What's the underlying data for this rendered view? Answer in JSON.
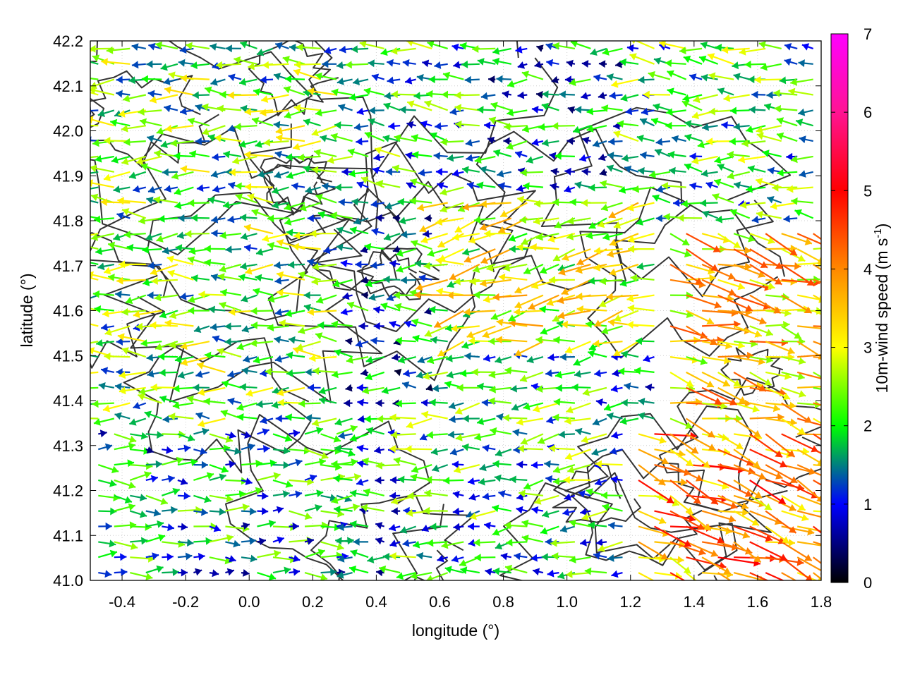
{
  "chart_data": {
    "type": "vector-field",
    "xlabel": "longitude (°)",
    "ylabel": "latitude (°)",
    "xlim": [
      -0.5,
      1.8
    ],
    "ylim": [
      41.0,
      42.2
    ],
    "x_ticks": [
      "-0.4",
      "-0.2",
      "0.0",
      "0.2",
      "0.4",
      "0.6",
      "0.8",
      "1.0",
      "1.2",
      "1.4",
      "1.6",
      "1.8"
    ],
    "x_tick_values": [
      -0.4,
      -0.2,
      0.0,
      0.2,
      0.4,
      0.6,
      0.8,
      1.0,
      1.2,
      1.4,
      1.6,
      1.8
    ],
    "y_ticks": [
      "41.0",
      "41.1",
      "41.2",
      "41.3",
      "41.4",
      "41.5",
      "41.6",
      "41.7",
      "41.8",
      "41.9",
      "42.0",
      "42.1",
      "42.2"
    ],
    "y_tick_values": [
      41.0,
      41.1,
      41.2,
      41.3,
      41.4,
      41.5,
      41.6,
      41.7,
      41.8,
      41.9,
      42.0,
      42.1,
      42.2
    ],
    "colorbar": {
      "label_main": "10m-wind speed (m s",
      "label_sup": "-1",
      "label_close": ")",
      "range": [
        0,
        7
      ],
      "ticks": [
        "0",
        "1",
        "2",
        "3",
        "4",
        "5",
        "6",
        "7"
      ],
      "tick_values": [
        0,
        1,
        2,
        3,
        4,
        5,
        6,
        7
      ],
      "colors": [
        "#000000",
        "#0000ff",
        "#00ff00",
        "#ffff00",
        "#ff8800",
        "#ff0000",
        "#ff00ff"
      ]
    },
    "grid": true,
    "contours": true,
    "contour_color": "#333333",
    "wind_regions": [
      {
        "lon": [
          -0.5,
          0.3
        ],
        "lat": [
          41.35,
          42.2
        ],
        "dir_deg": 180,
        "speed": 2.2
      },
      {
        "lon": [
          -0.5,
          0.3
        ],
        "lat": [
          41.0,
          41.35
        ],
        "dir_deg": 0,
        "speed": 1.6
      },
      {
        "lon": [
          0.3,
          0.75
        ],
        "lat": [
          41.85,
          42.2
        ],
        "dir_deg": 175,
        "speed": 1.8
      },
      {
        "lon": [
          0.3,
          0.6
        ],
        "lat": [
          41.4,
          41.85
        ],
        "dir_deg": 180,
        "speed": 1.3
      },
      {
        "lon": [
          0.6,
          1.3
        ],
        "lat": [
          41.5,
          41.85
        ],
        "dir_deg": 190,
        "speed": 2.8
      },
      {
        "lon": [
          0.5,
          1.2
        ],
        "lat": [
          41.0,
          41.5
        ],
        "dir_deg": 185,
        "speed": 1.9
      },
      {
        "lon": [
          1.2,
          1.8
        ],
        "lat": [
          41.0,
          41.35
        ],
        "dir_deg": 340,
        "speed": 3.9
      },
      {
        "lon": [
          1.3,
          1.8
        ],
        "lat": [
          41.35,
          41.8
        ],
        "dir_deg": 345,
        "speed": 3.4
      },
      {
        "lon": [
          1.2,
          1.8
        ],
        "lat": [
          41.8,
          42.2
        ],
        "dir_deg": 175,
        "speed": 2.0
      },
      {
        "lon": [
          0.75,
          1.2
        ],
        "lat": [
          41.85,
          42.2
        ],
        "dir_deg": 180,
        "speed": 1.4
      }
    ]
  }
}
